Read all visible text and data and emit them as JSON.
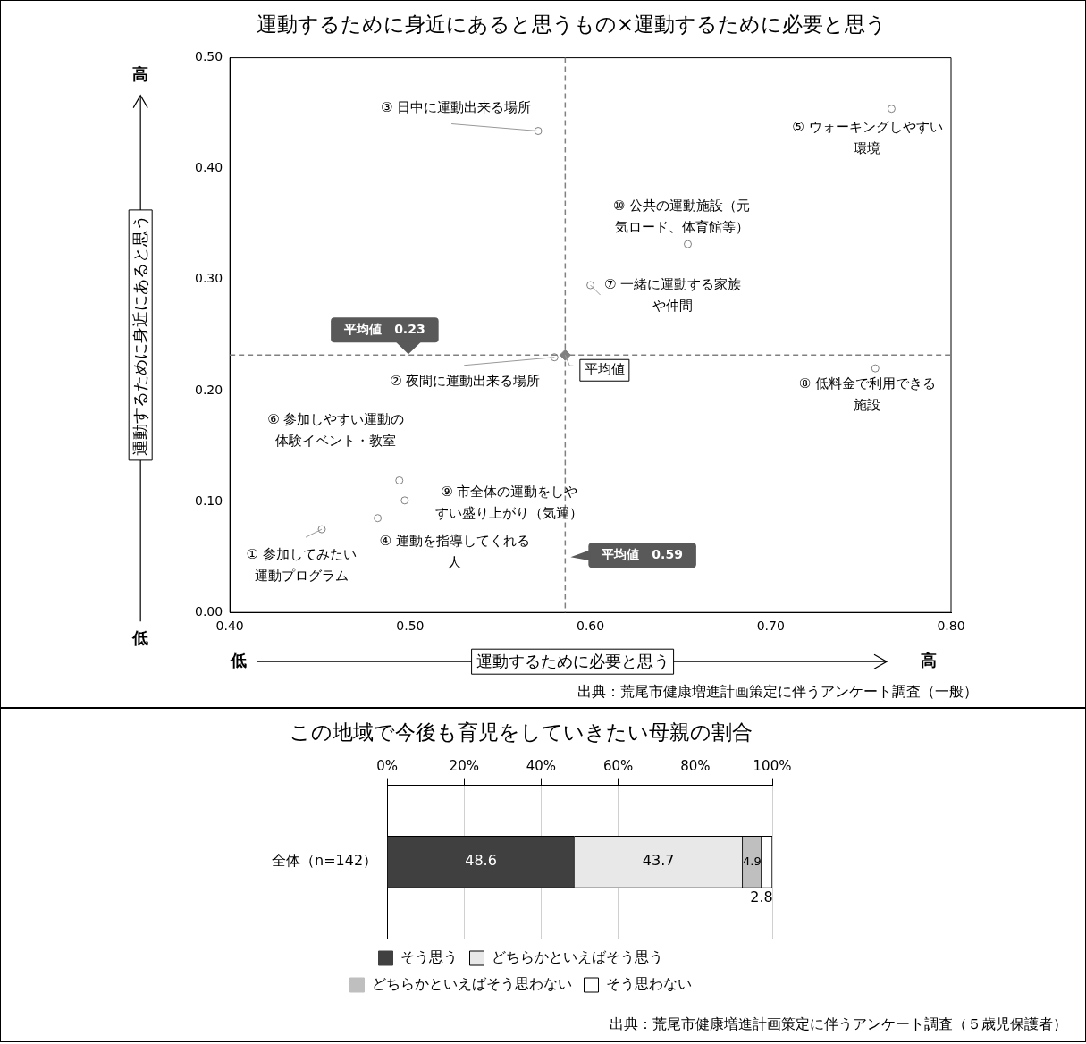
{
  "chart_data": [
    {
      "type": "scatter",
      "title": "運動するために身近にあると思うもの×運動するために必要と思う",
      "xlabel": "運動するために必要と思う",
      "ylabel": "運動するために身近にあると思う",
      "xlim": [
        0.4,
        0.8
      ],
      "xticks": [
        {
          "value": 0.4,
          "label": "0.40"
        },
        {
          "value": 0.5,
          "label": "0.50"
        },
        {
          "value": 0.6,
          "label": "0.60"
        },
        {
          "value": 0.7,
          "label": "0.70"
        },
        {
          "value": 0.8,
          "label": "0.80"
        }
      ],
      "ylim": [
        0,
        0.5
      ],
      "yticks": [
        {
          "value": 0,
          "label": "0.00"
        },
        {
          "value": 0.1,
          "label": "0.10"
        },
        {
          "value": 0.2,
          "label": "0.20"
        },
        {
          "value": 0.3,
          "label": "0.30"
        },
        {
          "value": 0.4,
          "label": "0.40"
        },
        {
          "value": 0.5,
          "label": "0.50"
        }
      ],
      "series": [
        {
          "type": "scatter",
          "color": "#808080",
          "marker": "circle",
          "x": [
            0.451,
            0.58,
            0.571,
            0.482,
            0.767,
            0.494,
            0.6,
            0.758,
            0.497,
            0.654
          ],
          "values": [
            0.075,
            0.23,
            0.434,
            0.085,
            0.454,
            0.119,
            0.295,
            0.22,
            0.101,
            0.332
          ]
        },
        {
          "type": "scatter",
          "color": "#808080",
          "marker": "diamond",
          "x": [
            0.586
          ],
          "values": [
            0.232
          ]
        }
      ],
      "ref_lines": [
        {
          "axis": "x",
          "value": 0.586,
          "label": "平均値　0.59",
          "color": "#808080",
          "line_style": "dashed"
        },
        {
          "axis": "y",
          "value": 0.232,
          "label": "平均値　0.23",
          "color": "#808080",
          "line_style": "dashed"
        }
      ],
      "annotations": [
        {
          "text": "① 参加してみたい運動プログラム",
          "x": 0.451,
          "y": 0.075
        },
        {
          "text": "② 夜間に運動出来る場所",
          "x": 0.58,
          "y": 0.23
        },
        {
          "text": "③ 日中に運動出来る場所",
          "x": 0.571,
          "y": 0.434
        },
        {
          "text": "④ 運動を指導してくれる人",
          "x": 0.482,
          "y": 0.085
        },
        {
          "text": "⑤ ウォーキングしやすい環境",
          "x": 0.767,
          "y": 0.454
        },
        {
          "text": "⑥ 参加しやすい運動の体験イベント・教室",
          "x": 0.494,
          "y": 0.119
        },
        {
          "text": "⑦ 一緒に運動する家族や仲間",
          "x": 0.6,
          "y": 0.295
        },
        {
          "text": "⑧ 低料金で利用できる施設",
          "x": 0.758,
          "y": 0.22
        },
        {
          "text": "⑨ 市全体の運動をしやすい盛り上がり（気運）",
          "x": 0.497,
          "y": 0.101
        },
        {
          "text": "⑩ 公共の運動施設（元気ロード、体育館等）",
          "x": 0.654,
          "y": 0.332
        },
        {
          "text": "平均値",
          "x": 0.586,
          "y": 0.232
        },
        "高",
        "低",
        "低",
        "高",
        "出典：荒尾市健康増進計画策定に伴うアンケート調査（一般）"
      ],
      "grid": false,
      "legend": false
    },
    {
      "type": "bar",
      "orientation": "horizontal",
      "stacked": true,
      "title": "この地域で今後も育児をしていきたい母親の割合",
      "categories": [
        "全体（n=142）"
      ],
      "xlim": [
        0,
        100
      ],
      "xticks": [
        {
          "value": 0,
          "label": "0%"
        },
        {
          "value": 20,
          "label": "20%"
        },
        {
          "value": 40,
          "label": "40%"
        },
        {
          "value": 60,
          "label": "60%"
        },
        {
          "value": 80,
          "label": "80%"
        },
        {
          "value": 100,
          "label": "100%"
        }
      ],
      "series": [
        {
          "name": "そう思う",
          "color": "#404040",
          "values": [
            48.6
          ]
        },
        {
          "name": "どちらかといえばそう思う",
          "color": "#e8e8e8",
          "values": [
            43.7
          ]
        },
        {
          "name": "どちらかといえばそう思わない",
          "color": "#bfbfbf",
          "values": [
            4.9
          ]
        },
        {
          "name": "そう思わない",
          "color": "#ffffff",
          "values": [
            2.8
          ]
        }
      ],
      "data_labels": true,
      "grid": "x",
      "legend": "bottom",
      "annotations": [
        "出典：荒尾市健康増進計画策定に伴うアンケート調査（５歳児保護者）"
      ]
    }
  ]
}
